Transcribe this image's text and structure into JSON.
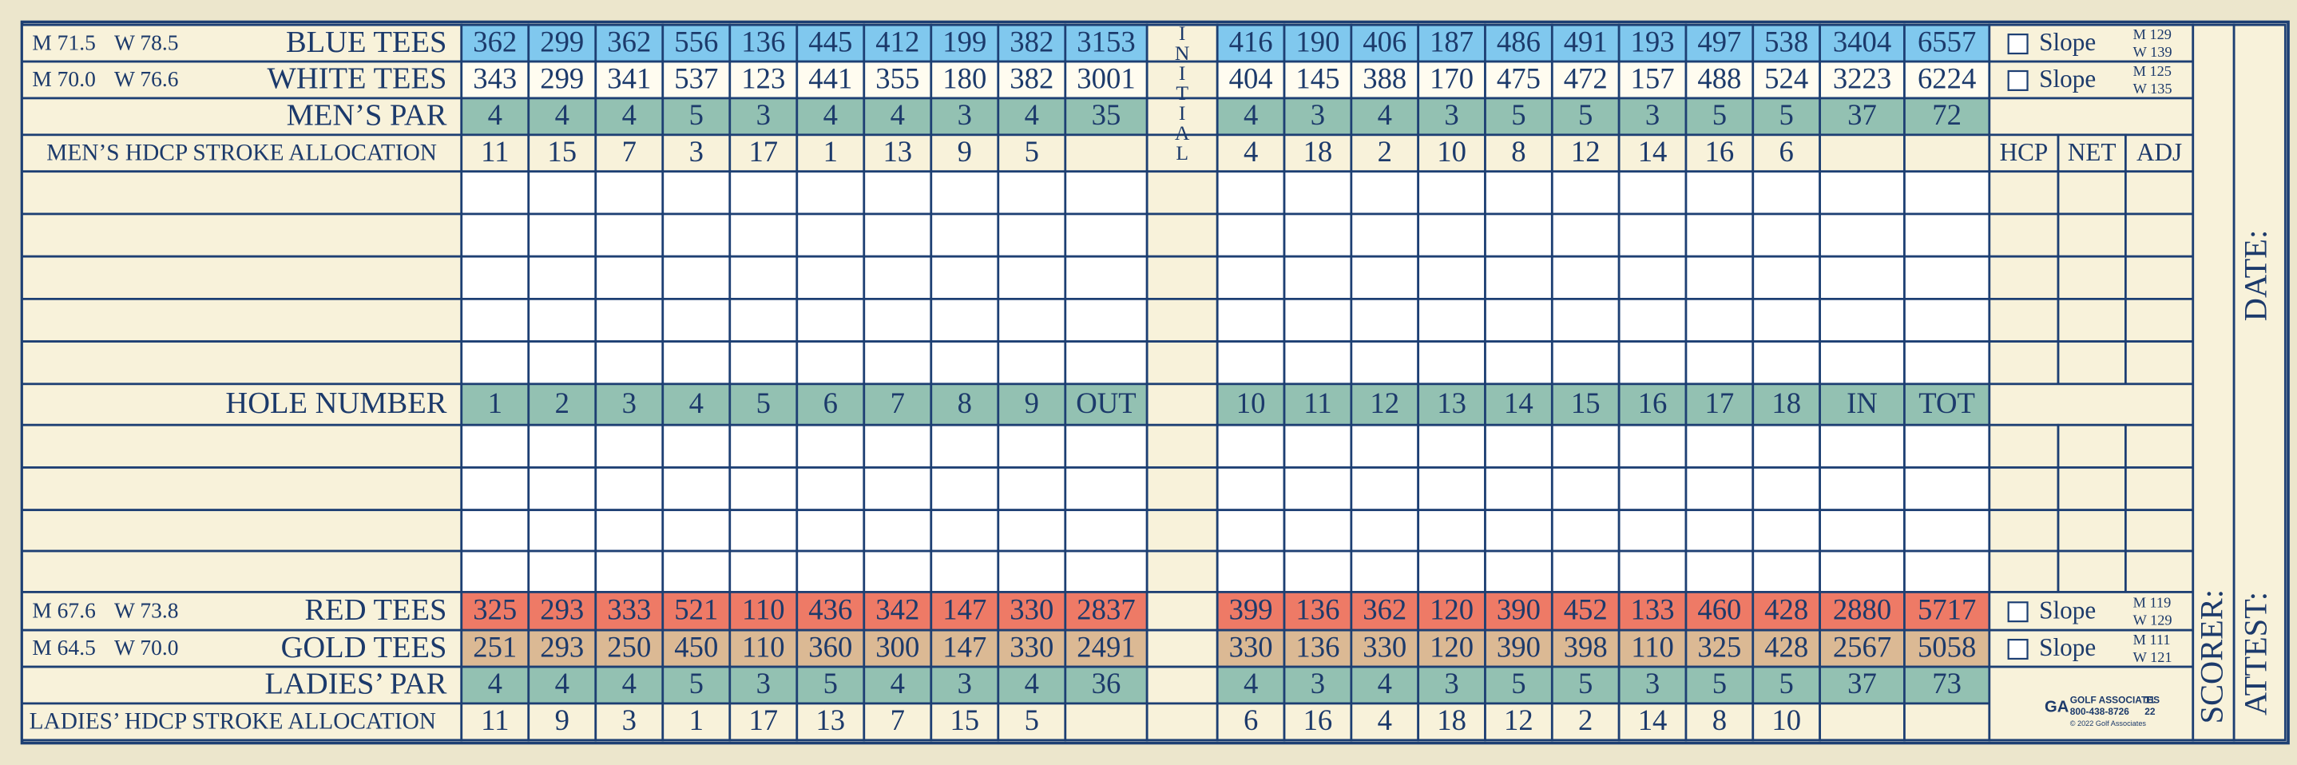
{
  "men": {
    "tees": [
      {
        "rating": [
          "M 71.5",
          "W 78.5"
        ],
        "label": "BLUE TEES",
        "front": [
          362,
          299,
          362,
          556,
          136,
          445,
          412,
          199,
          382
        ],
        "out": 3153,
        "back": [
          416,
          190,
          406,
          187,
          486,
          491,
          193,
          497,
          538
        ],
        "in": 3404,
        "tot": 6557,
        "slope": "Slope",
        "slope_rating": [
          "M 129",
          "W 139"
        ]
      },
      {
        "rating": [
          "M 70.0",
          "W 76.6"
        ],
        "label": "WHITE TEES",
        "front": [
          343,
          299,
          341,
          537,
          123,
          441,
          355,
          180,
          382
        ],
        "out": 3001,
        "back": [
          404,
          145,
          388,
          170,
          475,
          472,
          157,
          488,
          524
        ],
        "in": 3223,
        "tot": 6224,
        "slope": "Slope",
        "slope_rating": [
          "M 125",
          "W 135"
        ]
      }
    ],
    "par": {
      "label": "MEN’S PAR",
      "front": [
        4,
        4,
        4,
        5,
        3,
        4,
        4,
        3,
        4
      ],
      "out": 35,
      "back": [
        4,
        3,
        4,
        3,
        5,
        5,
        3,
        5,
        5
      ],
      "in": 37,
      "tot": 72
    },
    "hdcp": {
      "label": "MEN’S HDCP STROKE ALLOCATION",
      "front": [
        11,
        15,
        7,
        3,
        17,
        1,
        13,
        9,
        5
      ],
      "back": [
        4,
        18,
        2,
        10,
        8,
        12,
        14,
        16,
        6
      ]
    }
  },
  "initial": "INITIAL",
  "score_headers": [
    "HCP",
    "NET",
    "ADJ"
  ],
  "hole_row": {
    "label": "HOLE NUMBER",
    "front": [
      1,
      2,
      3,
      4,
      5,
      6,
      7,
      8,
      9
    ],
    "out": "OUT",
    "back": [
      10,
      11,
      12,
      13,
      14,
      15,
      16,
      17,
      18
    ],
    "in": "IN",
    "tot": "TOT"
  },
  "ladies": {
    "tees": [
      {
        "rating": [
          "M 67.6",
          "W 73.8"
        ],
        "label": "RED TEES",
        "front": [
          325,
          293,
          333,
          521,
          110,
          436,
          342,
          147,
          330
        ],
        "out": 2837,
        "back": [
          399,
          136,
          362,
          120,
          390,
          452,
          133,
          460,
          428
        ],
        "in": 2880,
        "tot": 5717,
        "slope": "Slope",
        "slope_rating": [
          "M 119",
          "W 129"
        ]
      },
      {
        "rating": [
          "M 64.5",
          "W 70.0"
        ],
        "label": "GOLD TEES",
        "front": [
          251,
          293,
          250,
          450,
          110,
          360,
          300,
          147,
          330
        ],
        "out": 2491,
        "back": [
          330,
          136,
          330,
          120,
          390,
          398,
          110,
          325,
          428
        ],
        "in": 2567,
        "tot": 5058,
        "slope": "Slope",
        "slope_rating": [
          "M 111",
          "W 121"
        ]
      }
    ],
    "par": {
      "label": "LADIES’ PAR",
      "front": [
        4,
        4,
        4,
        5,
        3,
        5,
        4,
        3,
        4
      ],
      "out": 36,
      "back": [
        4,
        3,
        4,
        3,
        5,
        5,
        3,
        5,
        5
      ],
      "in": 37,
      "tot": 73
    },
    "hdcp": {
      "label": "LADIES’ HDCP STROKE ALLOCATION",
      "front": [
        11,
        9,
        3,
        1,
        17,
        13,
        7,
        15,
        5
      ],
      "back": [
        6,
        16,
        4,
        18,
        12,
        2,
        14,
        8,
        10
      ]
    }
  },
  "logo": {
    "mark": "GA",
    "name": "GOLF ASSOCIATES",
    "phone": "800-438-8726",
    "code_top": "11",
    "code_bottom": "22",
    "copyright": "© 2022 Golf Associates"
  },
  "signatures": {
    "scorer": "SCORER:",
    "date": "DATE:",
    "attest": "ATTEST:"
  }
}
